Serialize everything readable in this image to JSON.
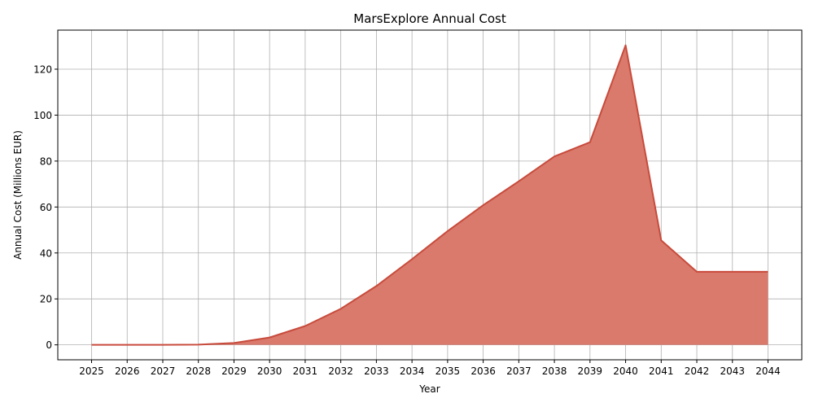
{
  "chart_data": {
    "type": "area",
    "title": "MarsExplore Annual Cost",
    "xlabel": "Year",
    "ylabel": "Annual Cost (Millions EUR)",
    "x": [
      "2025",
      "2026",
      "2027",
      "2028",
      "2029",
      "2030",
      "2031",
      "2032",
      "2033",
      "2034",
      "2035",
      "2036",
      "2037",
      "2038",
      "2039",
      "2040",
      "2041",
      "2042",
      "2043",
      "2044"
    ],
    "series": [
      {
        "values": [
          0,
          0,
          0,
          0.1,
          0.8,
          3.2,
          8.2,
          15.7,
          25.6,
          37.3,
          49.5,
          60.8,
          71.2,
          82.0,
          88.2,
          130.4,
          45.5,
          31.8,
          31.8,
          31.8
        ]
      }
    ],
    "yticks": [
      0,
      20,
      40,
      60,
      80,
      100,
      120
    ],
    "ylim": [
      -6.5,
      137
    ],
    "grid": true,
    "colors": {
      "fill": "#d97a6c",
      "line": "#c84b3c",
      "grid": "#b0b0b0",
      "axis": "#000000"
    }
  }
}
